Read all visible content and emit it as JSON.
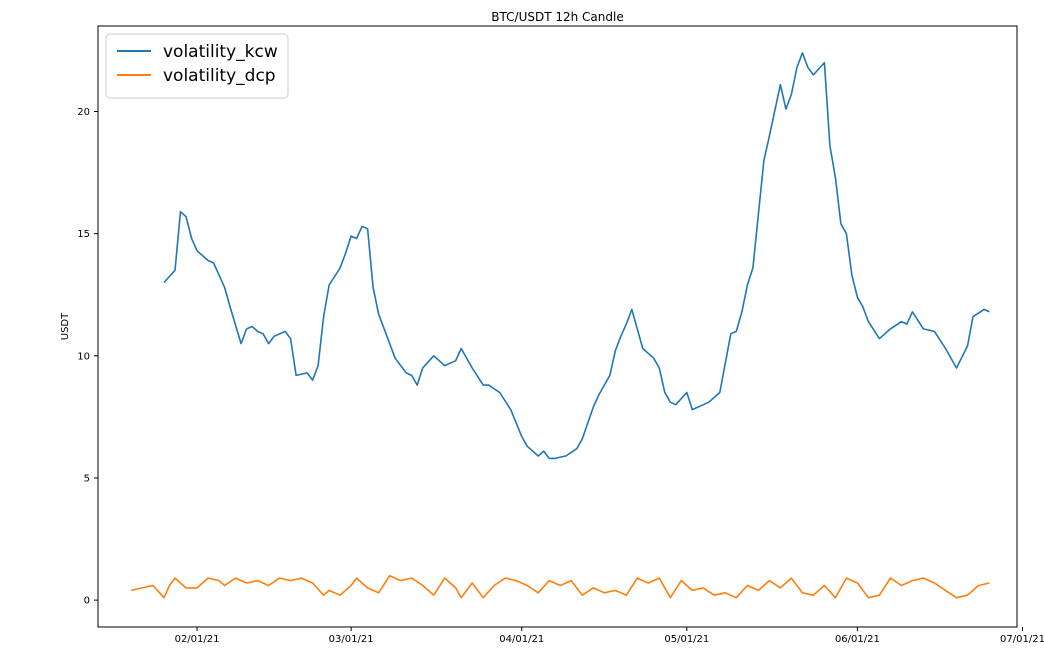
{
  "chart_data": {
    "type": "line",
    "title": "BTC/USDT 12h Candle",
    "xlabel": "",
    "ylabel": "USDT",
    "xlim": [
      "2021-01-14",
      "2021-06-30"
    ],
    "ylim": [
      -1.1,
      23.5
    ],
    "y_ticks": [
      0,
      5,
      10,
      15,
      20
    ],
    "y_tick_labels": [
      "0",
      "5",
      "10",
      "15",
      "20"
    ],
    "x_ticks": [
      "2021-02-01",
      "2021-03-01",
      "2021-04-01",
      "2021-05-01",
      "2021-06-01",
      "2021-07-01"
    ],
    "x_tick_labels": [
      "02/01/21",
      "03/01/21",
      "04/01/21",
      "05/01/21",
      "06/01/21",
      "07/01/21"
    ],
    "grid": false,
    "legend_position": "top-left",
    "series": [
      {
        "name": "volatility_kcw",
        "color": "#1f77b4",
        "x": [
          "2021-01-26",
          "2021-01-28",
          "2021-01-29",
          "2021-01-30",
          "2021-01-31",
          "2021-02-01",
          "2021-02-03",
          "2021-02-04",
          "2021-02-05",
          "2021-02-06",
          "2021-02-07",
          "2021-02-09",
          "2021-02-10",
          "2021-02-11",
          "2021-02-12",
          "2021-02-13",
          "2021-02-14",
          "2021-02-15",
          "2021-02-17",
          "2021-02-18",
          "2021-02-19",
          "2021-02-21",
          "2021-02-22",
          "2021-02-23",
          "2021-02-24",
          "2021-02-25",
          "2021-02-27",
          "2021-02-28",
          "2021-03-01",
          "2021-03-02",
          "2021-03-03",
          "2021-03-04",
          "2021-03-05",
          "2021-03-06",
          "2021-03-08",
          "2021-03-09",
          "2021-03-11",
          "2021-03-12",
          "2021-03-13",
          "2021-03-14",
          "2021-03-16",
          "2021-03-17",
          "2021-03-18",
          "2021-03-20",
          "2021-03-21",
          "2021-03-23",
          "2021-03-25",
          "2021-03-26",
          "2021-03-28",
          "2021-03-30",
          "2021-04-01",
          "2021-04-02",
          "2021-04-04",
          "2021-04-05",
          "2021-04-06",
          "2021-04-07",
          "2021-04-09",
          "2021-04-11",
          "2021-04-12",
          "2021-04-14",
          "2021-04-15",
          "2021-04-17",
          "2021-04-18",
          "2021-04-19",
          "2021-04-20",
          "2021-04-21",
          "2021-04-23",
          "2021-04-25",
          "2021-04-26",
          "2021-04-27",
          "2021-04-28",
          "2021-04-29",
          "2021-05-01",
          "2021-05-02",
          "2021-05-04",
          "2021-05-05",
          "2021-05-07",
          "2021-05-09",
          "2021-05-10",
          "2021-05-11",
          "2021-05-12",
          "2021-05-13",
          "2021-05-15",
          "2021-05-16",
          "2021-05-18",
          "2021-05-19",
          "2021-05-20",
          "2021-05-21",
          "2021-05-22",
          "2021-05-23",
          "2021-05-24",
          "2021-05-26",
          "2021-05-27",
          "2021-05-28",
          "2021-05-29",
          "2021-05-30",
          "2021-05-31",
          "2021-06-01",
          "2021-06-02",
          "2021-06-03",
          "2021-06-05",
          "2021-06-06",
          "2021-06-07",
          "2021-06-09",
          "2021-06-10",
          "2021-06-11",
          "2021-06-13",
          "2021-06-15",
          "2021-06-17",
          "2021-06-19",
          "2021-06-21",
          "2021-06-22",
          "2021-06-24",
          "2021-06-25"
        ],
        "values": [
          13.0,
          13.5,
          15.9,
          15.7,
          14.8,
          14.3,
          13.9,
          13.8,
          13.3,
          12.8,
          12.0,
          10.5,
          11.1,
          11.2,
          11.0,
          10.9,
          10.5,
          10.8,
          11.0,
          10.7,
          9.2,
          9.3,
          9.0,
          9.6,
          11.6,
          12.9,
          13.6,
          14.2,
          14.9,
          14.8,
          15.3,
          15.2,
          12.8,
          11.7,
          10.5,
          9.9,
          9.3,
          9.2,
          8.8,
          9.5,
          10.0,
          9.8,
          9.6,
          9.8,
          10.3,
          9.5,
          8.8,
          8.8,
          8.5,
          7.8,
          6.7,
          6.3,
          5.9,
          6.1,
          5.8,
          5.8,
          5.9,
          6.2,
          6.6,
          7.9,
          8.4,
          9.2,
          10.2,
          10.8,
          11.3,
          11.9,
          10.3,
          9.9,
          9.5,
          8.5,
          8.1,
          8.0,
          8.5,
          7.8,
          8.0,
          8.1,
          8.5,
          10.9,
          11.0,
          11.8,
          12.9,
          13.6,
          18.0,
          19.0,
          21.1,
          20.1,
          20.7,
          21.8,
          22.4,
          21.8,
          21.5,
          22.0,
          18.6,
          17.3,
          15.4,
          15.0,
          13.3,
          12.4,
          12.0,
          11.4,
          10.7,
          10.9,
          11.1,
          11.4,
          11.3,
          11.8,
          11.1,
          11.0,
          10.3,
          9.5,
          10.4,
          11.6,
          11.9,
          11.8
        ]
      },
      {
        "name": "volatility_dcp",
        "color": "#ff7f0e",
        "x": [
          "2021-01-20",
          "2021-01-22",
          "2021-01-24",
          "2021-01-26",
          "2021-01-27",
          "2021-01-28",
          "2021-01-30",
          "2021-02-01",
          "2021-02-03",
          "2021-02-05",
          "2021-02-06",
          "2021-02-08",
          "2021-02-10",
          "2021-02-12",
          "2021-02-14",
          "2021-02-16",
          "2021-02-18",
          "2021-02-20",
          "2021-02-22",
          "2021-02-24",
          "2021-02-25",
          "2021-02-27",
          "2021-03-01",
          "2021-03-02",
          "2021-03-04",
          "2021-03-06",
          "2021-03-08",
          "2021-03-10",
          "2021-03-12",
          "2021-03-14",
          "2021-03-16",
          "2021-03-18",
          "2021-03-20",
          "2021-03-21",
          "2021-03-23",
          "2021-03-25",
          "2021-03-27",
          "2021-03-29",
          "2021-03-31",
          "2021-04-02",
          "2021-04-04",
          "2021-04-06",
          "2021-04-08",
          "2021-04-10",
          "2021-04-12",
          "2021-04-14",
          "2021-04-16",
          "2021-04-18",
          "2021-04-20",
          "2021-04-22",
          "2021-04-24",
          "2021-04-26",
          "2021-04-28",
          "2021-04-30",
          "2021-05-02",
          "2021-05-04",
          "2021-05-06",
          "2021-05-08",
          "2021-05-10",
          "2021-05-12",
          "2021-05-14",
          "2021-05-16",
          "2021-05-18",
          "2021-05-20",
          "2021-05-22",
          "2021-05-24",
          "2021-05-26",
          "2021-05-28",
          "2021-05-30",
          "2021-06-01",
          "2021-06-03",
          "2021-06-05",
          "2021-06-07",
          "2021-06-09",
          "2021-06-11",
          "2021-06-13",
          "2021-06-15",
          "2021-06-17",
          "2021-06-19",
          "2021-06-21",
          "2021-06-23",
          "2021-06-25"
        ],
        "values": [
          0.4,
          0.5,
          0.6,
          0.1,
          0.6,
          0.9,
          0.5,
          0.5,
          0.9,
          0.8,
          0.6,
          0.9,
          0.7,
          0.8,
          0.6,
          0.9,
          0.8,
          0.9,
          0.7,
          0.2,
          0.4,
          0.2,
          0.6,
          0.9,
          0.5,
          0.3,
          1.0,
          0.8,
          0.9,
          0.6,
          0.2,
          0.9,
          0.5,
          0.1,
          0.7,
          0.1,
          0.6,
          0.9,
          0.8,
          0.6,
          0.3,
          0.8,
          0.6,
          0.8,
          0.2,
          0.5,
          0.3,
          0.4,
          0.2,
          0.9,
          0.7,
          0.9,
          0.1,
          0.8,
          0.4,
          0.5,
          0.2,
          0.3,
          0.1,
          0.6,
          0.4,
          0.8,
          0.5,
          0.9,
          0.3,
          0.2,
          0.6,
          0.1,
          0.9,
          0.7,
          0.1,
          0.2,
          0.9,
          0.6,
          0.8,
          0.9,
          0.7,
          0.4,
          0.1,
          0.2,
          0.6,
          0.7
        ]
      }
    ]
  }
}
